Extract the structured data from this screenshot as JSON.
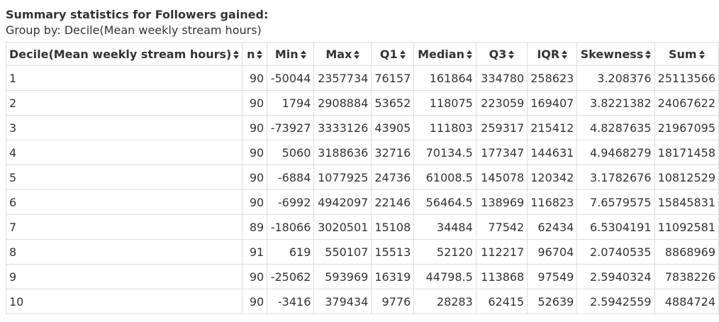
{
  "heading": {
    "title": "Summary statistics for Followers gained:",
    "subtitle": "Group by: Decile(Mean weekly stream hours)"
  },
  "icons": {
    "sort": "sort-updown-icon"
  },
  "table": {
    "columns": [
      "Decile(Mean weekly stream hours)",
      "n",
      "Min",
      "Max",
      "Q1",
      "Median",
      "Q3",
      "IQR",
      "Skewness",
      "Sum"
    ],
    "rows": [
      [
        "1",
        "90",
        "-50044",
        "2357734",
        "76157",
        "161864",
        "334780",
        "258623",
        "3.208376",
        "25113566"
      ],
      [
        "2",
        "90",
        "1794",
        "2908884",
        "53652",
        "118075",
        "223059",
        "169407",
        "3.8221382",
        "24067622"
      ],
      [
        "3",
        "90",
        "-73927",
        "3333126",
        "43905",
        "111803",
        "259317",
        "215412",
        "4.8287635",
        "21967095"
      ],
      [
        "4",
        "90",
        "5060",
        "3188636",
        "32716",
        "70134.5",
        "177347",
        "144631",
        "4.9468279",
        "18171458"
      ],
      [
        "5",
        "90",
        "-6884",
        "1077925",
        "24736",
        "61008.5",
        "145078",
        "120342",
        "3.1782676",
        "10812529"
      ],
      [
        "6",
        "90",
        "-6992",
        "4942097",
        "22146",
        "56464.5",
        "138969",
        "116823",
        "7.6579575",
        "15845831"
      ],
      [
        "7",
        "89",
        "-18066",
        "3020501",
        "15108",
        "34484",
        "77542",
        "62434",
        "6.5304191",
        "11092581"
      ],
      [
        "8",
        "91",
        "619",
        "550107",
        "15513",
        "52120",
        "112217",
        "96704",
        "2.0740535",
        "8868969"
      ],
      [
        "9",
        "90",
        "-25062",
        "593969",
        "16319",
        "44798.5",
        "113868",
        "97549",
        "2.5940324",
        "7838226"
      ],
      [
        "10",
        "90",
        "-3416",
        "379434",
        "9776",
        "28283",
        "62415",
        "52639",
        "2.5942559",
        "4884724"
      ]
    ]
  }
}
